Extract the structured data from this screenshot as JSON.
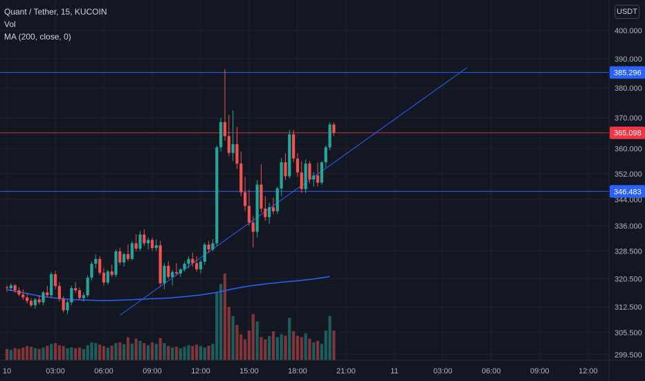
{
  "legend": {
    "symbol": "Quant / Tether, 15, KUCOIN",
    "volume": "Vol",
    "ma": "MA (200, close, 0)"
  },
  "currency_button": "USDT",
  "chart_data": {
    "type": "candlestick",
    "y_axis": {
      "scale": "log",
      "range": [
        298,
        405
      ],
      "ticks": [
        {
          "value": 299.5,
          "label": "299.500"
        },
        {
          "value": 305.5,
          "label": "305.500"
        },
        {
          "value": 312.5,
          "label": "312.500"
        },
        {
          "value": 320.5,
          "label": "320.500"
        },
        {
          "value": 328.5,
          "label": "328.500"
        },
        {
          "value": 336.0,
          "label": "336.000"
        },
        {
          "value": 344.0,
          "label": "344.000"
        },
        {
          "value": 352.0,
          "label": "352.000"
        },
        {
          "value": 360.0,
          "label": "360.000"
        },
        {
          "value": 370.0,
          "label": "370.000"
        },
        {
          "value": 380.0,
          "label": "380.000"
        },
        {
          "value": 390.0,
          "label": "390.000"
        },
        {
          "value": 400.0,
          "label": "400.000"
        }
      ]
    },
    "x_axis": {
      "unit": "hour",
      "range": [
        -0.5,
        37.5
      ],
      "ticks": [
        {
          "hour": 0,
          "label": "10"
        },
        {
          "hour": 3,
          "label": "03:00"
        },
        {
          "hour": 6,
          "label": "06:00"
        },
        {
          "hour": 9,
          "label": "09:00"
        },
        {
          "hour": 12,
          "label": "12:00"
        },
        {
          "hour": 15,
          "label": "15:00"
        },
        {
          "hour": 18,
          "label": "18:00"
        },
        {
          "hour": 21,
          "label": "21:00"
        },
        {
          "hour": 24,
          "label": "11"
        },
        {
          "hour": 27,
          "label": "03:00"
        },
        {
          "hour": 30,
          "label": "06:00"
        },
        {
          "hour": 33,
          "label": "09:00"
        },
        {
          "hour": 36,
          "label": "12:00"
        }
      ]
    },
    "colors": {
      "up": "#26a69a",
      "down": "#ef5350",
      "ma": "#2962ff",
      "level": "#2962ff"
    },
    "candles": [
      [
        0.0,
        318.0,
        318.6,
        316.8,
        317.8
      ],
      [
        0.25,
        317.8,
        319.2,
        317.0,
        318.6
      ],
      [
        0.5,
        318.6,
        319.0,
        316.5,
        317.2
      ],
      [
        0.75,
        317.2,
        318.0,
        315.5,
        316.0
      ],
      [
        1.0,
        316.0,
        317.5,
        314.5,
        315.2
      ],
      [
        1.25,
        315.2,
        316.5,
        313.5,
        314.2
      ],
      [
        1.5,
        314.2,
        315.0,
        312.5,
        313.0
      ],
      [
        1.75,
        313.0,
        315.0,
        312.0,
        314.6
      ],
      [
        2.0,
        314.6,
        315.8,
        313.2,
        313.8
      ],
      [
        2.25,
        313.8,
        317.0,
        313.0,
        316.6
      ],
      [
        2.5,
        316.6,
        318.5,
        315.2,
        315.8
      ],
      [
        2.75,
        315.8,
        322.5,
        315.0,
        321.8
      ],
      [
        3.0,
        321.8,
        322.8,
        317.5,
        318.4
      ],
      [
        3.25,
        318.4,
        319.5,
        314.0,
        314.8
      ],
      [
        3.5,
        314.8,
        315.5,
        311.0,
        311.6
      ],
      [
        3.75,
        311.6,
        314.5,
        310.5,
        313.8
      ],
      [
        4.0,
        313.8,
        318.5,
        313.0,
        317.8
      ],
      [
        4.25,
        317.8,
        319.5,
        316.5,
        317.2
      ],
      [
        4.5,
        317.2,
        318.0,
        314.5,
        315.0
      ],
      [
        4.75,
        315.0,
        316.5,
        314.0,
        315.8
      ],
      [
        5.0,
        315.8,
        321.5,
        315.2,
        320.8
      ],
      [
        5.25,
        320.8,
        325.5,
        320.0,
        324.8
      ],
      [
        5.5,
        324.8,
        327.5,
        323.5,
        326.2
      ],
      [
        5.75,
        326.2,
        327.0,
        321.5,
        322.2
      ],
      [
        6.0,
        322.2,
        323.5,
        318.5,
        319.4
      ],
      [
        6.25,
        319.4,
        323.0,
        318.8,
        322.6
      ],
      [
        6.5,
        322.6,
        324.5,
        321.0,
        321.6
      ],
      [
        6.75,
        321.6,
        329.0,
        321.0,
        328.4
      ],
      [
        7.0,
        328.4,
        329.5,
        324.5,
        325.2
      ],
      [
        7.25,
        325.2,
        328.0,
        324.0,
        327.6
      ],
      [
        7.5,
        327.6,
        330.5,
        325.5,
        326.2
      ],
      [
        7.75,
        326.2,
        331.5,
        325.8,
        330.8
      ],
      [
        8.0,
        330.8,
        333.5,
        328.5,
        329.2
      ],
      [
        8.25,
        329.2,
        334.5,
        328.5,
        333.4
      ],
      [
        8.5,
        333.4,
        335.0,
        330.0,
        330.8
      ],
      [
        8.75,
        330.8,
        332.5,
        329.0,
        331.8
      ],
      [
        9.0,
        331.8,
        332.5,
        328.5,
        329.4
      ],
      [
        9.25,
        329.4,
        332.0,
        328.5,
        330.2
      ],
      [
        9.5,
        330.2,
        331.5,
        318.5,
        319.2
      ],
      [
        9.75,
        319.2,
        325.0,
        317.5,
        324.2
      ],
      [
        10.0,
        324.2,
        325.5,
        320.5,
        321.0
      ],
      [
        10.25,
        321.0,
        323.0,
        318.5,
        322.4
      ],
      [
        10.5,
        322.4,
        325.0,
        321.5,
        322.0
      ],
      [
        10.75,
        322.0,
        323.5,
        321.0,
        323.2
      ],
      [
        11.0,
        323.2,
        325.5,
        322.5,
        324.8
      ],
      [
        11.25,
        324.8,
        327.0,
        323.5,
        326.2
      ],
      [
        11.5,
        326.2,
        328.0,
        324.0,
        325.0
      ],
      [
        11.75,
        325.0,
        327.0,
        322.5,
        323.2
      ],
      [
        12.0,
        323.2,
        326.0,
        322.0,
        325.4
      ],
      [
        12.25,
        325.4,
        331.0,
        324.5,
        330.4
      ],
      [
        12.5,
        330.4,
        331.5,
        328.0,
        329.0
      ],
      [
        12.75,
        329.0,
        332.0,
        328.5,
        330.8
      ],
      [
        13.0,
        330.8,
        361.0,
        330.0,
        360.4
      ],
      [
        13.25,
        360.4,
        370.0,
        359.0,
        368.6
      ],
      [
        13.5,
        368.6,
        386.5,
        362.5,
        364.0
      ],
      [
        13.75,
        364.0,
        371.0,
        357.5,
        358.6
      ],
      [
        14.0,
        358.6,
        372.5,
        356.0,
        361.4
      ],
      [
        14.25,
        361.4,
        367.0,
        353.5,
        355.2
      ],
      [
        14.5,
        355.2,
        359.0,
        345.0,
        346.2
      ],
      [
        14.75,
        346.2,
        351.0,
        340.5,
        342.0
      ],
      [
        15.0,
        342.0,
        347.0,
        336.0,
        337.0
      ],
      [
        15.25,
        337.0,
        339.0,
        329.5,
        334.2
      ],
      [
        15.5,
        334.2,
        350.0,
        332.5,
        348.6
      ],
      [
        15.75,
        348.6,
        355.0,
        340.0,
        341.2
      ],
      [
        16.0,
        341.2,
        345.0,
        337.5,
        338.6
      ],
      [
        16.25,
        338.6,
        343.0,
        336.5,
        341.6
      ],
      [
        16.5,
        341.6,
        344.5,
        339.5,
        340.4
      ],
      [
        16.75,
        340.4,
        348.0,
        339.5,
        347.4
      ],
      [
        17.0,
        347.4,
        357.0,
        345.0,
        355.6
      ],
      [
        17.25,
        355.6,
        358.5,
        350.0,
        351.2
      ],
      [
        17.5,
        351.2,
        366.0,
        350.5,
        364.6
      ],
      [
        17.75,
        364.6,
        366.0,
        355.5,
        356.8
      ],
      [
        18.0,
        356.8,
        358.5,
        351.0,
        352.4
      ],
      [
        18.25,
        352.4,
        356.0,
        346.0,
        347.2
      ],
      [
        18.5,
        347.2,
        356.5,
        346.0,
        355.2
      ],
      [
        18.75,
        355.2,
        356.0,
        349.0,
        350.2
      ],
      [
        19.0,
        350.2,
        352.5,
        348.0,
        351.4
      ],
      [
        19.25,
        351.4,
        355.5,
        348.0,
        349.2
      ],
      [
        19.5,
        349.2,
        356.0,
        348.5,
        355.6
      ],
      [
        19.75,
        355.6,
        361.0,
        354.0,
        360.4
      ],
      [
        20.0,
        360.4,
        368.5,
        359.5,
        367.8
      ],
      [
        20.25,
        367.8,
        368.5,
        364.0,
        365.1
      ]
    ],
    "volumes": [
      [
        0.0,
        301.0
      ],
      [
        0.25,
        300.8
      ],
      [
        0.5,
        301.2
      ],
      [
        0.75,
        301.0
      ],
      [
        1.0,
        301.4
      ],
      [
        1.25,
        301.8
      ],
      [
        1.5,
        301.6
      ],
      [
        1.75,
        301.2
      ],
      [
        2.0,
        301.0
      ],
      [
        2.25,
        301.4
      ],
      [
        2.5,
        301.9
      ],
      [
        2.75,
        302.4
      ],
      [
        3.0,
        302.6
      ],
      [
        3.25,
        302.0
      ],
      [
        3.5,
        301.8
      ],
      [
        3.75,
        301.2
      ],
      [
        4.0,
        301.5
      ],
      [
        4.25,
        301.2
      ],
      [
        4.5,
        301.4
      ],
      [
        4.75,
        301.0
      ],
      [
        5.0,
        302.0
      ],
      [
        5.25,
        302.8
      ],
      [
        5.5,
        302.6
      ],
      [
        5.75,
        302.2
      ],
      [
        6.0,
        301.8
      ],
      [
        6.25,
        301.4
      ],
      [
        6.5,
        301.9
      ],
      [
        6.75,
        302.6
      ],
      [
        7.0,
        302.8
      ],
      [
        7.25,
        302.3
      ],
      [
        7.5,
        304.2
      ],
      [
        7.75,
        302.5
      ],
      [
        8.0,
        303.8
      ],
      [
        8.25,
        303.2
      ],
      [
        8.5,
        302.6
      ],
      [
        8.75,
        302.0
      ],
      [
        9.0,
        302.8
      ],
      [
        9.25,
        302.4
      ],
      [
        9.5,
        304.0
      ],
      [
        9.75,
        302.6
      ],
      [
        10.0,
        301.8
      ],
      [
        10.25,
        301.4
      ],
      [
        10.5,
        301.6
      ],
      [
        10.75,
        301.2
      ],
      [
        11.0,
        301.6
      ],
      [
        11.25,
        302.0
      ],
      [
        11.5,
        301.8
      ],
      [
        11.75,
        302.2
      ],
      [
        12.0,
        301.8
      ],
      [
        12.25,
        301.4
      ],
      [
        12.5,
        301.9
      ],
      [
        12.75,
        302.4
      ],
      [
        13.0,
        316.5
      ],
      [
        13.25,
        319.0
      ],
      [
        13.5,
        322.0
      ],
      [
        13.75,
        312.5
      ],
      [
        14.0,
        310.0
      ],
      [
        14.25,
        307.5
      ],
      [
        14.5,
        305.0
      ],
      [
        14.75,
        303.6
      ],
      [
        15.0,
        306.0
      ],
      [
        15.25,
        310.5
      ],
      [
        15.5,
        308.5
      ],
      [
        15.75,
        304.2
      ],
      [
        16.0,
        303.6
      ],
      [
        16.25,
        304.5
      ],
      [
        16.5,
        305.8
      ],
      [
        16.75,
        304.2
      ],
      [
        17.0,
        305.0
      ],
      [
        17.25,
        304.6
      ],
      [
        17.5,
        309.5
      ],
      [
        17.75,
        305.8
      ],
      [
        18.0,
        304.6
      ],
      [
        18.25,
        304.2
      ],
      [
        18.5,
        305.2
      ],
      [
        18.75,
        303.8
      ],
      [
        19.0,
        302.8
      ],
      [
        19.25,
        303.2
      ],
      [
        19.5,
        302.4
      ],
      [
        19.75,
        306.0
      ],
      [
        20.0,
        310.0
      ],
      [
        20.25,
        306.0
      ]
    ],
    "moving_average": [
      [
        0,
        317.4
      ],
      [
        1,
        316.5
      ],
      [
        2,
        315.6
      ],
      [
        3,
        315.0
      ],
      [
        4,
        314.6
      ],
      [
        5,
        314.4
      ],
      [
        6,
        314.3
      ],
      [
        7,
        314.4
      ],
      [
        8,
        314.6
      ],
      [
        9,
        314.8
      ],
      [
        10,
        315.0
      ],
      [
        11,
        315.4
      ],
      [
        12,
        315.9
      ],
      [
        13,
        316.6
      ],
      [
        14,
        317.6
      ],
      [
        15,
        318.4
      ],
      [
        16,
        319.0
      ],
      [
        17,
        319.5
      ],
      [
        18,
        319.9
      ],
      [
        19,
        320.4
      ],
      [
        20,
        321.1
      ]
    ],
    "trendline": {
      "from": [
        7.0,
        310.2
      ],
      "to": [
        28.5,
        387.0
      ]
    },
    "levels": [
      {
        "value": 385.296,
        "label": "385.296",
        "color": "#2962ff"
      },
      {
        "value": 365.098,
        "label": "365.098",
        "color": "#f23645",
        "type": "last_price"
      },
      {
        "value": 346.483,
        "label": "346.483",
        "color": "#2962ff"
      }
    ]
  }
}
